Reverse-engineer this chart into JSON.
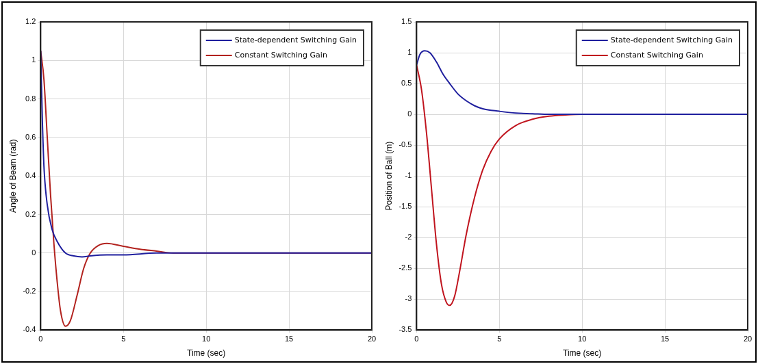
{
  "chart_data": [
    {
      "type": "line",
      "xlabel": "Time (sec)",
      "ylabel": "Angle of Beam (rad)",
      "xlim": [
        0,
        20
      ],
      "xticks": [
        0,
        5,
        10,
        15,
        20
      ],
      "ylim": [
        -0.4,
        1.2
      ],
      "yticks": [
        -0.4,
        -0.2,
        0,
        0.2,
        0.4,
        0.6,
        0.8,
        1,
        1.2
      ],
      "grid": true,
      "legend": "top right",
      "marker": "none",
      "line_style": "solid",
      "series": [
        {
          "name": "State-dependent Switching Gain",
          "color": "#1f1f9e",
          "x": [
            0,
            0.1,
            0.2,
            0.4,
            0.7,
            1.0,
            1.5,
            2,
            2.5,
            3,
            4,
            5,
            7,
            10,
            20
          ],
          "values": [
            1.05,
            0.7,
            0.45,
            0.25,
            0.12,
            0.06,
            0.0,
            -0.015,
            -0.02,
            -0.015,
            -0.01,
            -0.01,
            0,
            0,
            0
          ]
        },
        {
          "name": "Constant Switching Gain",
          "color": "#b2221e",
          "x": [
            0,
            0.2,
            0.4,
            0.6,
            0.8,
            1.0,
            1.2,
            1.5,
            1.8,
            2.2,
            2.6,
            3,
            3.5,
            4,
            5,
            6,
            7,
            8,
            10,
            20
          ],
          "values": [
            1.05,
            0.9,
            0.6,
            0.3,
            0.05,
            -0.15,
            -0.3,
            -0.38,
            -0.35,
            -0.22,
            -0.08,
            0.0,
            0.04,
            0.05,
            0.035,
            0.02,
            0.01,
            0,
            0,
            0
          ]
        }
      ]
    },
    {
      "type": "line",
      "xlabel": "Time (sec)",
      "ylabel": "Position of Ball (m)",
      "xlim": [
        0,
        20
      ],
      "xticks": [
        0,
        5,
        10,
        15,
        20
      ],
      "ylim": [
        -3.5,
        1.5
      ],
      "yticks": [
        -3.5,
        -3,
        -2.5,
        -2,
        -1.5,
        -1,
        -0.5,
        0,
        0.5,
        1,
        1.5
      ],
      "grid": true,
      "legend": "top right",
      "marker": "none",
      "line_style": "solid",
      "series": [
        {
          "name": "State-dependent Switching Gain",
          "color": "#1f1f9e",
          "x": [
            0,
            0.2,
            0.5,
            0.8,
            1.2,
            1.6,
            2,
            2.5,
            3,
            3.5,
            4,
            5,
            6,
            7,
            8,
            10,
            20
          ],
          "values": [
            0.8,
            0.97,
            1.03,
            1.0,
            0.85,
            0.65,
            0.5,
            0.33,
            0.22,
            0.14,
            0.09,
            0.05,
            0.02,
            0.01,
            0,
            0,
            0
          ]
        },
        {
          "name": "Constant Switching Gain",
          "color": "#c0141e",
          "x": [
            0,
            0.3,
            0.6,
            0.9,
            1.2,
            1.5,
            1.8,
            2.0,
            2.3,
            2.6,
            3,
            3.5,
            4,
            4.5,
            5,
            6,
            7,
            8,
            9,
            10,
            20
          ],
          "values": [
            0.8,
            0.4,
            -0.3,
            -1.2,
            -2.1,
            -2.75,
            -3.05,
            -3.1,
            -2.95,
            -2.55,
            -1.95,
            -1.35,
            -0.9,
            -0.6,
            -0.4,
            -0.18,
            -0.08,
            -0.03,
            -0.01,
            0,
            0
          ]
        }
      ]
    }
  ]
}
